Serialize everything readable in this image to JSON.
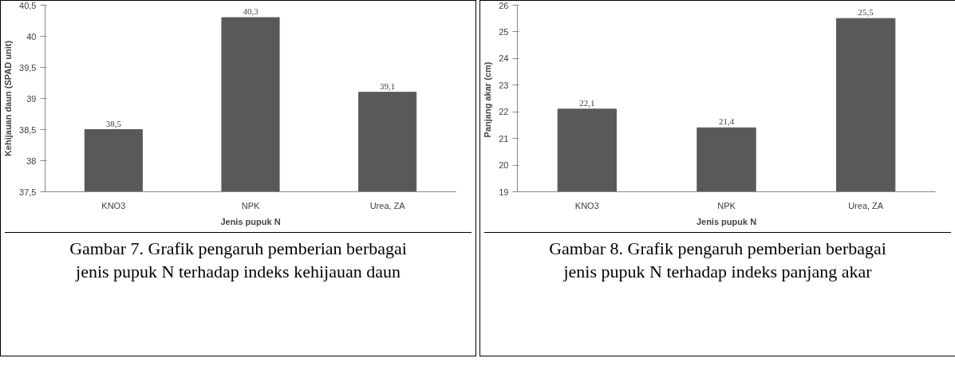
{
  "chart_data": [
    {
      "type": "bar",
      "categories": [
        "KNO3",
        "NPK",
        "Urea, ZA"
      ],
      "values": [
        38.5,
        40.3,
        39.1
      ],
      "value_labels": [
        "38,5",
        "40,3",
        "39,1"
      ],
      "color": "#595959",
      "xlabel": "Jenis pupuk N",
      "ylabel": "Kehijauan daun (SPAD unit)",
      "ylim": [
        37.5,
        40.5
      ],
      "yticks": [
        {
          "value": 37.5,
          "label": "37,5"
        },
        38,
        {
          "value": 38.5,
          "label": "38,5"
        },
        39,
        {
          "value": 39.5,
          "label": "39,5"
        },
        40,
        {
          "value": 40.5,
          "label": "40,5"
        }
      ],
      "grid": false,
      "annotations": [
        "Gambar 7.  Grafik pengaruh pemberian berbagai jenis pupuk N terhadap indeks kehijauan daun"
      ]
    },
    {
      "type": "bar",
      "categories": [
        "KNO3",
        "NPK",
        "Urea, ZA"
      ],
      "values": [
        22.1,
        21.4,
        25.5
      ],
      "value_labels": [
        "22,1",
        "21,4",
        "25,5"
      ],
      "color": "#595959",
      "xlabel": "Jenis pupuk N",
      "ylabel": "Panjang  akar (cm)",
      "ylim": [
        19,
        26
      ],
      "yticks": [
        19,
        20,
        21,
        22,
        23,
        24,
        25,
        26
      ],
      "grid": false,
      "annotations": [
        "Gambar 8. Grafik pengaruh pemberian berbagai jenis pupuk N terhadap indeks panjang akar"
      ]
    }
  ]
}
